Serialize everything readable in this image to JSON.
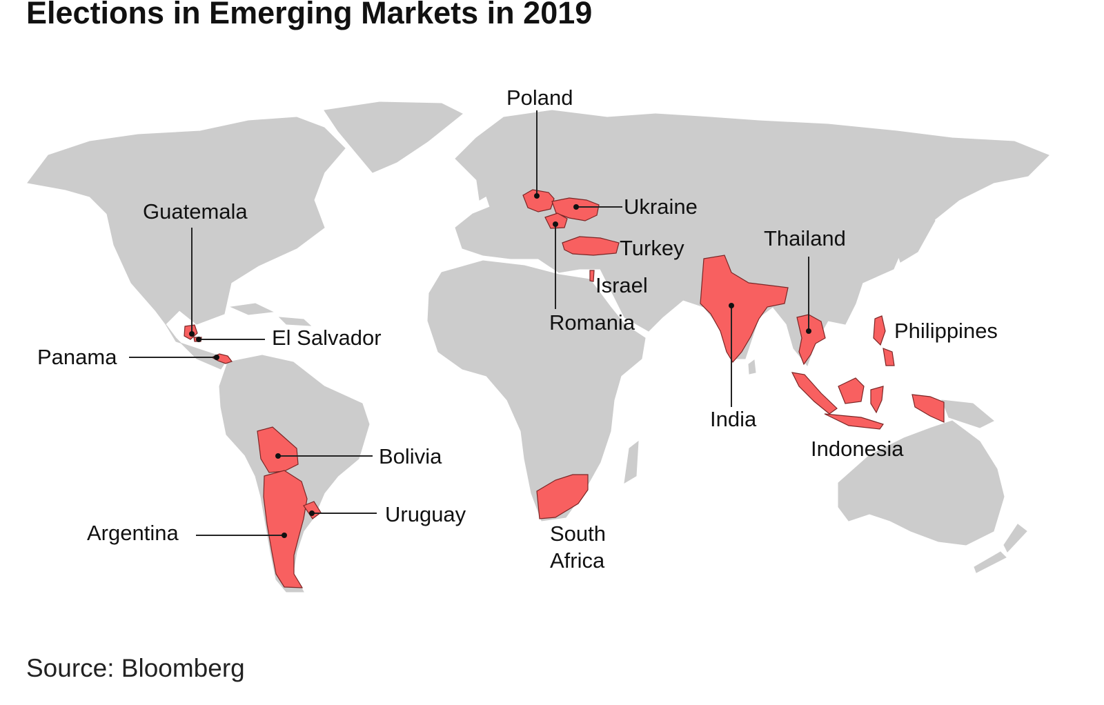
{
  "title": "Elections in Emerging Markets in 2019",
  "source": "Source: Bloomberg",
  "colors": {
    "land": "#cccccc",
    "highlight": "#f86060",
    "text": "#111111"
  },
  "countries": [
    {
      "id": "poland",
      "label": "Poland"
    },
    {
      "id": "ukraine",
      "label": "Ukraine"
    },
    {
      "id": "turkey",
      "label": "Turkey"
    },
    {
      "id": "israel",
      "label": "Israel"
    },
    {
      "id": "romania",
      "label": "Romania"
    },
    {
      "id": "guatemala",
      "label": "Guatemala"
    },
    {
      "id": "el-salvador",
      "label": "El Salvador"
    },
    {
      "id": "panama",
      "label": "Panama"
    },
    {
      "id": "bolivia",
      "label": "Bolivia"
    },
    {
      "id": "uruguay",
      "label": "Uruguay"
    },
    {
      "id": "argentina",
      "label": "Argentina"
    },
    {
      "id": "south-africa",
      "label": "South Africa",
      "label_lines": [
        "South",
        "Africa"
      ]
    },
    {
      "id": "india",
      "label": "India"
    },
    {
      "id": "thailand",
      "label": "Thailand"
    },
    {
      "id": "philippines",
      "label": "Philippines"
    },
    {
      "id": "indonesia",
      "label": "Indonesia"
    }
  ]
}
